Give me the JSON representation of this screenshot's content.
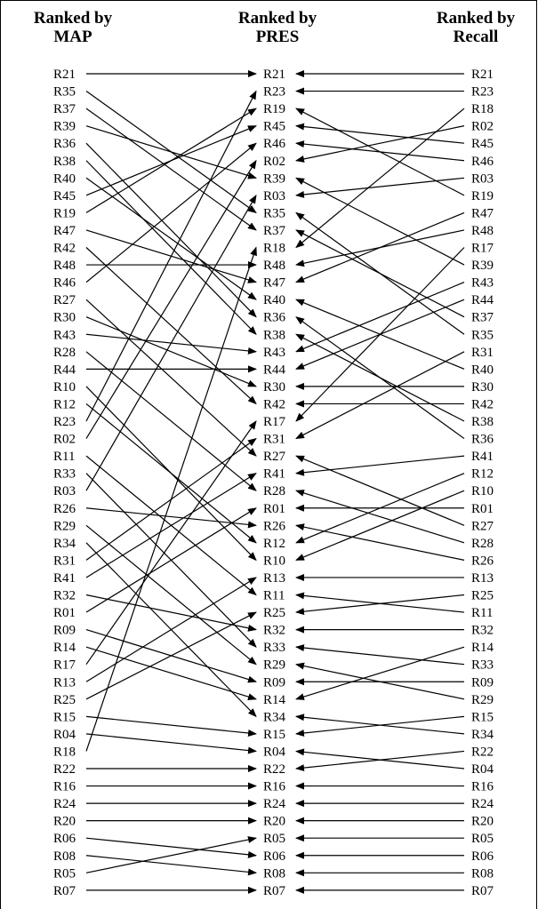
{
  "headers": {
    "map": [
      "Ranked by",
      "MAP"
    ],
    "pres": [
      "Ranked by",
      "PRES"
    ],
    "recall": [
      "Ranked by",
      "Recall"
    ]
  },
  "map_ranking": [
    "R21",
    "R35",
    "R37",
    "R39",
    "R36",
    "R38",
    "R40",
    "R45",
    "R19",
    "R47",
    "R42",
    "R48",
    "R46",
    "R27",
    "R30",
    "R43",
    "R28",
    "R44",
    "R10",
    "R12",
    "R23",
    "R02",
    "R11",
    "R33",
    "R03",
    "R26",
    "R29",
    "R34",
    "R31",
    "R41",
    "R32",
    "R01",
    "R09",
    "R14",
    "R17",
    "R13",
    "R25",
    "R15",
    "R04",
    "R18",
    "R22",
    "R16",
    "R24",
    "R20",
    "R06",
    "R08",
    "R05",
    "R07"
  ],
  "pres_ranking": [
    "R21",
    "R23",
    "R19",
    "R45",
    "R46",
    "R02",
    "R39",
    "R03",
    "R35",
    "R37",
    "R18",
    "R48",
    "R47",
    "R40",
    "R36",
    "R38",
    "R43",
    "R44",
    "R30",
    "R42",
    "R17",
    "R31",
    "R27",
    "R41",
    "R28",
    "R01",
    "R26",
    "R12",
    "R10",
    "R13",
    "R11",
    "R25",
    "R32",
    "R33",
    "R29",
    "R09",
    "R14",
    "R34",
    "R15",
    "R04",
    "R22",
    "R16",
    "R24",
    "R20",
    "R05",
    "R06",
    "R08",
    "R07"
  ],
  "recall_ranking": [
    "R21",
    "R23",
    "R18",
    "R02",
    "R45",
    "R46",
    "R03",
    "R19",
    "R47",
    "R48",
    "R17",
    "R39",
    "R43",
    "R44",
    "R37",
    "R35",
    "R31",
    "R40",
    "R30",
    "R42",
    "R38",
    "R36",
    "R41",
    "R12",
    "R10",
    "R01",
    "R27",
    "R28",
    "R26",
    "R13",
    "R25",
    "R11",
    "R32",
    "R14",
    "R33",
    "R09",
    "R29",
    "R15",
    "R34",
    "R22",
    "R04",
    "R16",
    "R24",
    "R20",
    "R05",
    "R06",
    "R08",
    "R07"
  ]
}
